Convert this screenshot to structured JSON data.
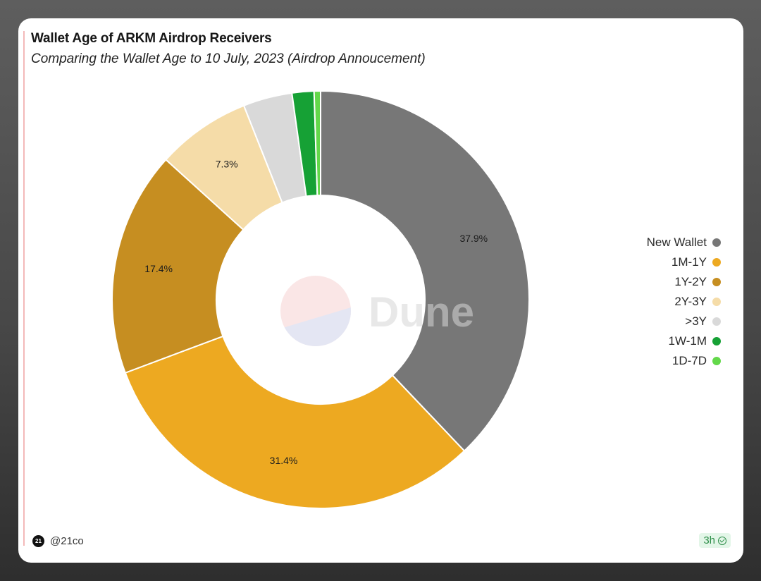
{
  "chart_data": {
    "type": "pie",
    "variant": "donut",
    "title": "Wallet Age of ARKM Airdrop Receivers",
    "subtitle": "Comparing the Wallet Age to 10 July, 2023 (Airdrop Annoucement)",
    "slices": [
      {
        "label": "New Wallet",
        "value": 37.9,
        "color": "#777777",
        "data_label": "37.9%"
      },
      {
        "label": "1M-1Y",
        "value": 31.4,
        "color": "#eda921",
        "data_label": "31.4%"
      },
      {
        "label": "1Y-2Y",
        "value": 17.4,
        "color": "#c68e21",
        "data_label": "17.4%"
      },
      {
        "label": "2Y-3Y",
        "value": 7.3,
        "color": "#f5dca8",
        "data_label": "7.3%"
      },
      {
        "label": ">3Y",
        "value": 3.8,
        "color": "#d9d9d9",
        "data_label": ""
      },
      {
        "label": "1W-1M",
        "value": 1.7,
        "color": "#16a135",
        "data_label": ""
      },
      {
        "label": "1D-7D",
        "value": 0.5,
        "color": "#63d84a",
        "data_label": ""
      }
    ],
    "legend_position": "right",
    "watermark": "Dune"
  },
  "footer": {
    "avatar_text": "21",
    "username": "@21co",
    "refresh_label": "3h"
  }
}
